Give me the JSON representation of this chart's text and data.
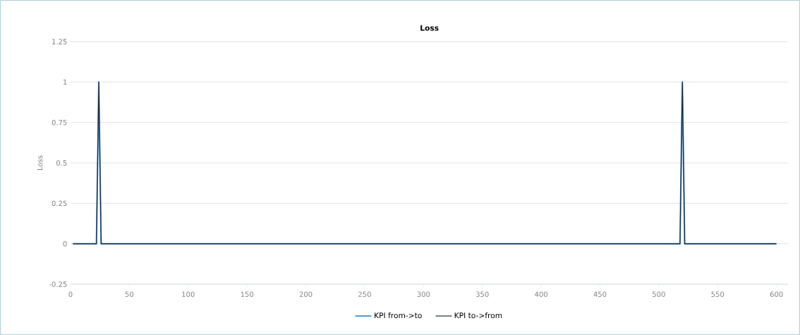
{
  "chart_data": {
    "type": "line",
    "title": "Loss",
    "ylabel": "Loss",
    "x": [
      2,
      22,
      24,
      26,
      518,
      520,
      522,
      600
    ],
    "series": [
      {
        "name": "KPI from->to",
        "color": "#5b9bd5",
        "values": [
          0,
          0,
          1,
          0,
          0,
          1,
          0,
          0
        ]
      },
      {
        "name": "KPI to->from",
        "color": "#1c2b3a",
        "values": [
          0,
          0,
          1,
          0,
          0,
          1,
          0,
          0
        ]
      }
    ],
    "xlim": [
      0,
      610
    ],
    "ylim": [
      -0.25,
      1.25
    ],
    "xticks": [
      0,
      50,
      100,
      150,
      200,
      250,
      300,
      350,
      400,
      450,
      500,
      550,
      600
    ],
    "yticks": [
      -0.25,
      0,
      0.25,
      0.5,
      0.75,
      1,
      1.25
    ],
    "grid": "y",
    "legend": "bottom",
    "marker": "none",
    "line_style": "solid"
  }
}
